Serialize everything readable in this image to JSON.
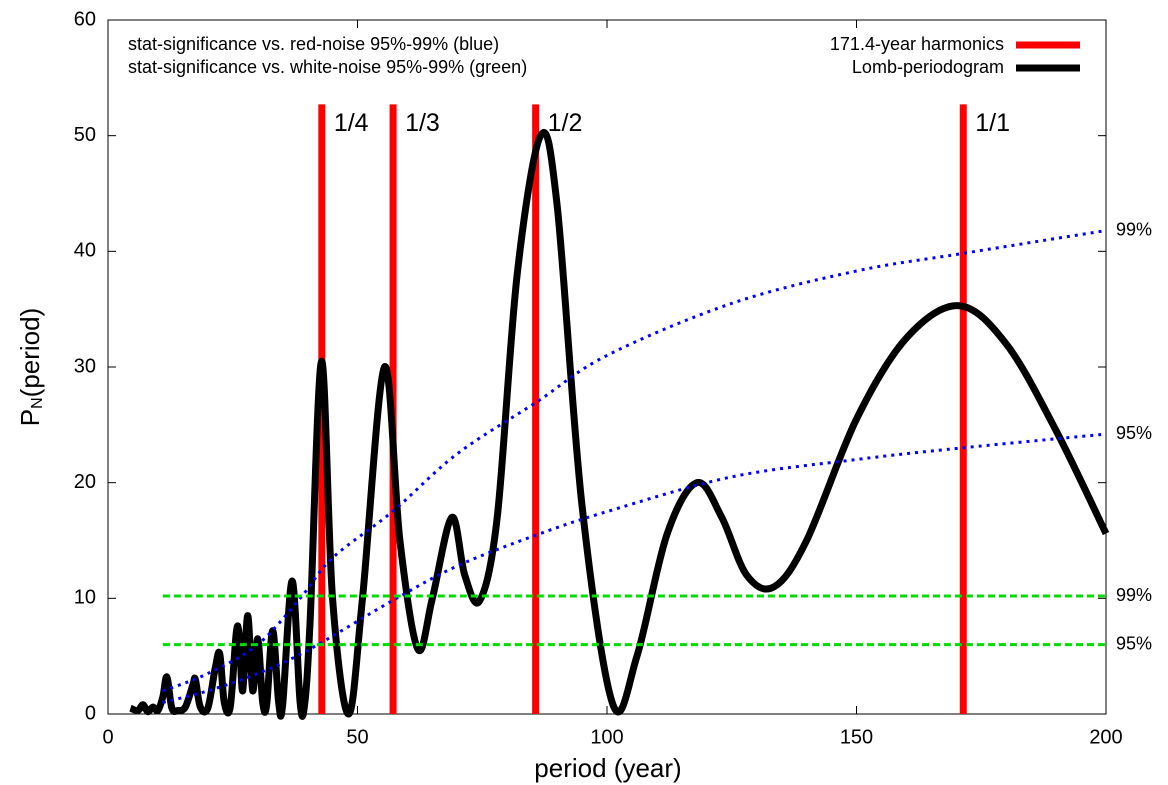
{
  "chart_data": {
    "type": "line",
    "xlabel": "period (year)",
    "ylabel": [
      "P",
      "N",
      "(period)"
    ],
    "annotations": [
      "stat-significance vs. red-noise 95%-99% (blue)",
      "stat-significance vs. white-noise 95%-99% (green)"
    ],
    "xlim": [
      0,
      200
    ],
    "xticks": [
      0,
      50,
      100,
      150,
      200
    ],
    "ylim": [
      0,
      60
    ],
    "yticks": [
      0,
      10,
      20,
      30,
      40,
      50,
      60
    ],
    "legend": "top-right",
    "series": [
      {
        "name": "171.4-year harmonics",
        "color": "#ff0000",
        "style": "bar",
        "x": [
          42.85,
          57.13,
          85.7,
          171.4
        ],
        "values": [
          52.7,
          52.7,
          52.7,
          52.7
        ],
        "labels": [
          "1/4",
          "1/3",
          "1/2",
          "1/1"
        ]
      },
      {
        "name": "Lomb-periodogram",
        "color": "#000000",
        "style": "solid",
        "x": [
          4.5,
          6,
          7,
          8,
          9,
          10,
          11,
          11.8,
          12.8,
          14,
          15.5,
          17,
          17.5,
          18.5,
          20,
          21.5,
          22.4,
          23.3,
          24.5,
          25.7,
          26.3,
          27,
          28,
          29,
          30,
          31,
          31.8,
          33,
          34.2,
          35,
          36.9,
          38.5,
          39.4,
          40.5,
          42.8,
          45,
          48.2,
          51,
          55.4,
          58.5,
          62.1,
          65,
          68.9,
          71.5,
          74.5,
          78,
          82,
          86.7,
          90,
          95,
          101.2,
          106,
          112,
          118,
          123,
          128,
          133.5,
          140,
          150,
          160,
          170.5,
          180,
          190,
          200
        ],
        "values": [
          0.5,
          0.3,
          0.8,
          0.2,
          0.6,
          0.3,
          1.5,
          3.2,
          0.5,
          0.3,
          0.6,
          2.5,
          3,
          0.6,
          0.5,
          4,
          5.2,
          1,
          0.6,
          7,
          6.8,
          2,
          8.5,
          2,
          6.5,
          1,
          0.8,
          7.2,
          1,
          0.8,
          11.5,
          1,
          0.8,
          8,
          30.5,
          10,
          0,
          10,
          30,
          15,
          5.6,
          10,
          17,
          12,
          9.8,
          17,
          38,
          50,
          44,
          18,
          0.8,
          5,
          15.5,
          20,
          17,
          12,
          11,
          15,
          25.5,
          32.5,
          35.3,
          32,
          24.5,
          15.6
        ]
      },
      {
        "color": "#0000ff",
        "style": "dotted",
        "label": "99%",
        "x": [
          11,
          20,
          30,
          38.5,
          45,
          57,
          70,
          86,
          100,
          125,
          150,
          171,
          200
        ],
        "values": [
          2,
          3.5,
          6,
          10,
          13.5,
          17.5,
          22.5,
          27,
          31,
          35.5,
          38.3,
          39.8,
          41.8
        ]
      },
      {
        "color": "#0000ff",
        "style": "dotted",
        "label": "95%",
        "x": [
          11,
          20,
          30,
          40,
          57,
          70,
          86,
          100,
          125,
          150,
          171,
          200
        ],
        "values": [
          1,
          2,
          3.5,
          5.5,
          9.8,
          12.8,
          15.5,
          17.5,
          20.5,
          22,
          23,
          24.2
        ]
      },
      {
        "color": "#00dd00",
        "style": "dashed",
        "label": "99%",
        "x": [
          11,
          200
        ],
        "values": [
          10.2,
          10.2
        ]
      },
      {
        "color": "#00dd00",
        "style": "dashed",
        "label": "95%",
        "x": [
          11,
          200
        ],
        "values": [
          6,
          6
        ]
      }
    ]
  }
}
